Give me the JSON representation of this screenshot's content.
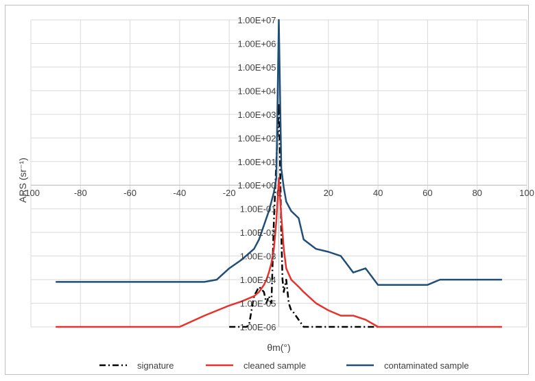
{
  "chart_data": {
    "type": "line",
    "xlabel": "θm(°)",
    "ylabel": "ARS (sr⁻¹)",
    "xlim": [
      -100,
      100
    ],
    "ylim": [
      1e-06,
      10000000.0
    ],
    "y_scale": "log",
    "grid": true,
    "legend_position": "bottom",
    "x_ticks": [
      "-100",
      "-80",
      "-60",
      "-40",
      "-20",
      "0",
      "20",
      "40",
      "60",
      "80",
      "100"
    ],
    "y_ticks": [
      "1.00E-06",
      "1.00E-05",
      "1.00E-04",
      "1.00E-03",
      "1.00E-02",
      "1.00E-01",
      "1.00E+00",
      "1.00E+01",
      "1.00E+02",
      "1.00E+03",
      "1.00E+04",
      "1.00E+05",
      "1.00E+06",
      "1.00E+07"
    ],
    "series": [
      {
        "name": "signature",
        "color": "#000000",
        "dash": "dash-dot",
        "x": [
          -20,
          -15,
          -14,
          -13,
          -12,
          -11,
          -10,
          -8,
          -6,
          -5,
          -4,
          -3,
          -2,
          -1,
          0,
          0.5,
          1,
          1.5,
          2,
          3,
          4,
          5,
          6,
          8,
          10,
          20,
          30,
          40
        ],
        "y": [
          1e-06,
          1e-06,
          1e-06,
          1e-06,
          1.2e-06,
          5e-06,
          2e-05,
          5e-05,
          3e-05,
          1e-05,
          2e-05,
          1e-05,
          0.03,
          10,
          3000,
          10,
          0.01,
          0.0001,
          3e-05,
          0.0001,
          1e-05,
          5e-06,
          4e-06,
          2e-06,
          1e-06,
          1e-06,
          1e-06,
          1e-06
        ]
      },
      {
        "name": "cleaned sample",
        "color": "#e8312a",
        "dash": "solid",
        "x": [
          -90,
          -40,
          -30,
          -20,
          -15,
          -10,
          -8,
          -6,
          -5,
          -4,
          -3,
          -2,
          -1,
          0,
          1,
          2,
          3,
          5,
          8,
          10,
          15,
          20,
          25,
          30,
          35,
          40,
          60,
          90
        ],
        "y": [
          1e-06,
          1e-06,
          3e-06,
          8e-06,
          1.2e-05,
          2e-05,
          3e-05,
          6e-05,
          0.0001,
          0.0002,
          0.0005,
          0.002,
          0.03,
          2,
          0.05,
          0.002,
          0.0003,
          0.0001,
          5e-05,
          3e-05,
          1e-05,
          5e-06,
          3e-06,
          3e-06,
          2e-06,
          1e-06,
          1e-06,
          1e-06
        ]
      },
      {
        "name": "contaminated sample",
        "color": "#1f4e79",
        "dash": "solid",
        "x": [
          -90,
          -30,
          -25,
          -20,
          -15,
          -10,
          -8,
          -6,
          -4,
          -3,
          -2,
          -1,
          0,
          1,
          2,
          3,
          5,
          8,
          10,
          15,
          20,
          25,
          30,
          35,
          40,
          60,
          65,
          90
        ],
        "y": [
          8e-05,
          8e-05,
          0.0001,
          0.0003,
          0.0007,
          0.002,
          0.005,
          0.02,
          0.08,
          0.2,
          0.5,
          2,
          10000000.0,
          5,
          0.8,
          0.2,
          0.08,
          0.04,
          0.005,
          0.002,
          0.0015,
          0.001,
          0.0002,
          0.0003,
          6e-05,
          6e-05,
          0.0001,
          0.0001
        ]
      }
    ]
  }
}
